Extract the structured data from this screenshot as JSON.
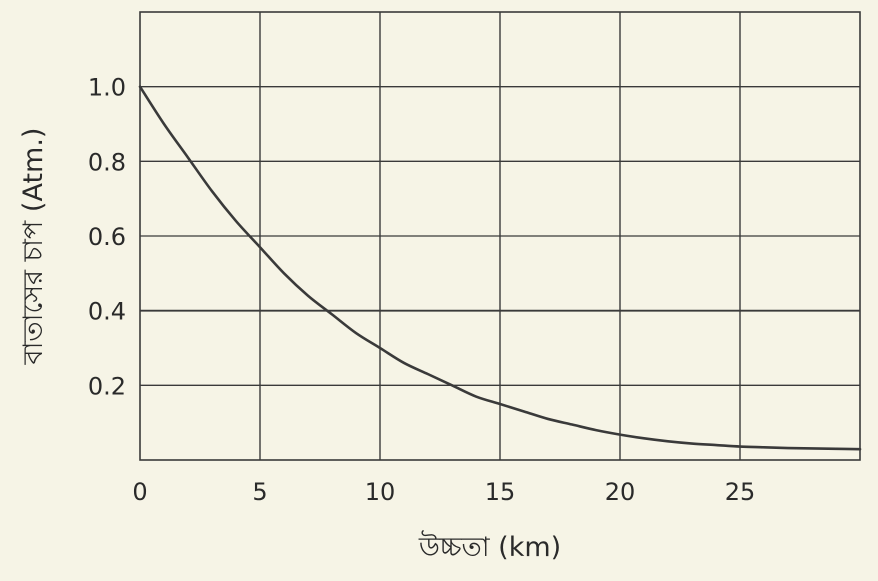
{
  "chart_data": {
    "type": "line",
    "title": "",
    "xlabel": "উচ্চতা (km)",
    "ylabel": "বাতাসের চাপ (Atm.)",
    "xlim": [
      0,
      30
    ],
    "ylim": [
      0,
      1.2
    ],
    "x_ticks": [
      0,
      5,
      10,
      15,
      20,
      25
    ],
    "x_tick_labels": [
      "0",
      "5",
      "10",
      "15",
      "20",
      "25"
    ],
    "y_ticks": [
      0.2,
      0.4,
      0.6,
      0.8,
      1.0
    ],
    "y_tick_labels": [
      "0.2",
      "0.4",
      "0.6",
      "0.8",
      "1.0"
    ],
    "grid": true,
    "series": [
      {
        "x": [
          0,
          1,
          2,
          3,
          4,
          5,
          6,
          7,
          8,
          9,
          10,
          11,
          12,
          13,
          14,
          15,
          16,
          17,
          18,
          19,
          20,
          21,
          22,
          23,
          24,
          25,
          26,
          27,
          28,
          29,
          30
        ],
        "y": [
          1.0,
          0.9,
          0.81,
          0.72,
          0.64,
          0.57,
          0.5,
          0.44,
          0.39,
          0.34,
          0.3,
          0.26,
          0.23,
          0.2,
          0.17,
          0.15,
          0.13,
          0.11,
          0.095,
          0.08,
          0.068,
          0.058,
          0.05,
          0.044,
          0.04,
          0.036,
          0.034,
          0.032,
          0.031,
          0.03,
          0.029
        ]
      }
    ],
    "colors": {
      "background": "#f6f4e6",
      "plot_background": "#f6f4e6",
      "grid": "#3a3a3a",
      "line": "#3a3a3a",
      "text": "#2a2a2a"
    }
  }
}
